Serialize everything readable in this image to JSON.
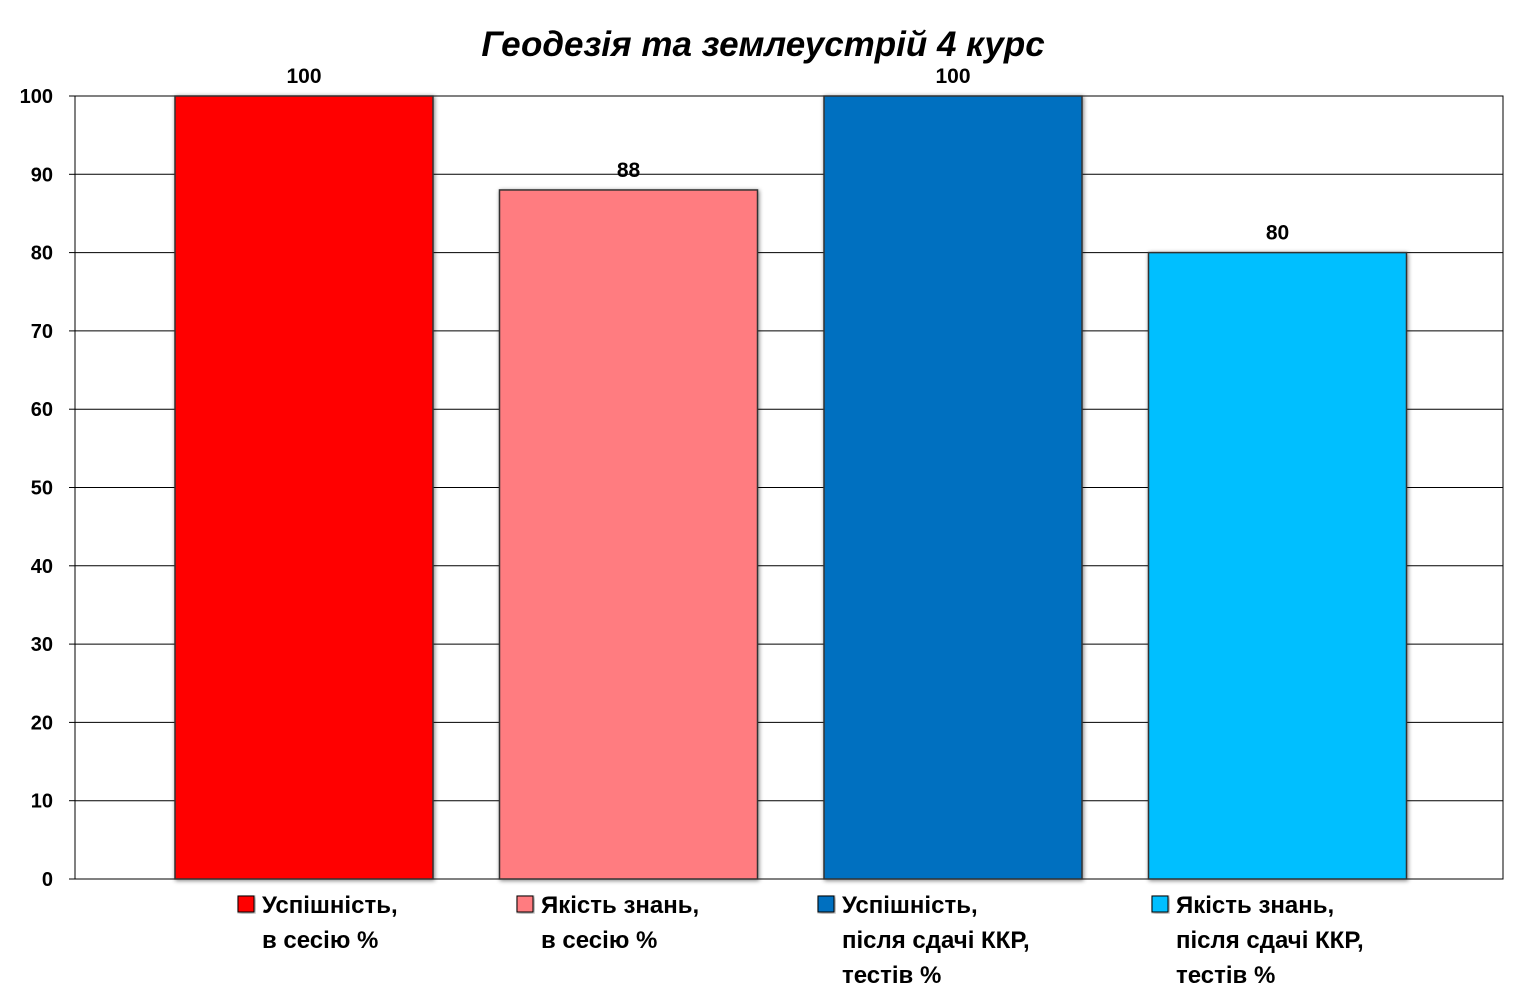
{
  "chart_data": {
    "type": "bar",
    "title": "Геодезія та землеустрій 4 курс",
    "xlabel": "",
    "ylabel": "",
    "ylim": [
      0,
      100
    ],
    "yticks": [
      0,
      10,
      20,
      30,
      40,
      50,
      60,
      70,
      80,
      90,
      100
    ],
    "grid": true,
    "legend_placement": "bottom",
    "series": [
      {
        "name_lines": [
          "Успішність,",
          "в сесію %"
        ],
        "value": 100,
        "color": "#ff0000"
      },
      {
        "name_lines": [
          "Якість знань,",
          "в сесію %"
        ],
        "value": 88,
        "color": "#ff7c80"
      },
      {
        "name_lines": [
          "Успішність,",
          "після сдачі ККР,",
          "тестів %"
        ],
        "value": 100,
        "color": "#0070c0"
      },
      {
        "name_lines": [
          "Якість знань,",
          "після сдачі ККР,",
          "тестів %"
        ],
        "value": 80,
        "color": "#00bfff"
      }
    ]
  }
}
